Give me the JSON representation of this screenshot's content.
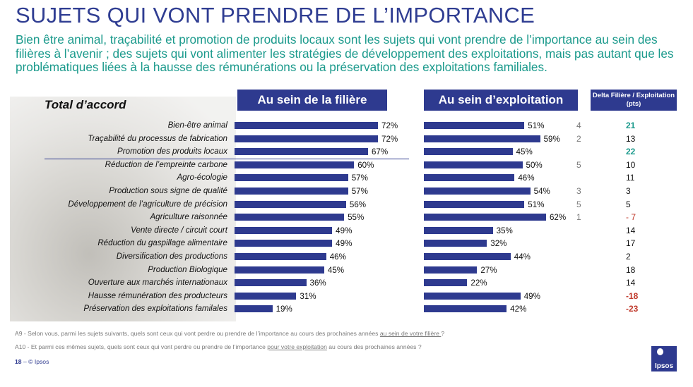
{
  "title": "SUJETS QUI VONT PRENDRE DE L’IMPORTANCE",
  "subtitle": "Bien être animal, traçabilité et promotion de produits locaux sont les sujets qui vont prendre de l’importance au sein des filières à l’avenir ; des sujets qui vont alimenter les stratégies de développement des exploitations, mais pas autant que les problématiques liées à la hausse des rémunérations ou la préservation des exploitations familiales.",
  "total_label": "Total d’accord",
  "headers": {
    "filiere": "Au sein de la filière",
    "exploitation": "Au sein d’exploitation",
    "delta": "Delta Filière / Exploitation (pts)"
  },
  "chart_data": {
    "type": "bar",
    "orientation": "horizontal",
    "categories": [
      "Bien-être animal",
      "Traçabilité du processus de fabrication",
      "Promotion des produits locaux",
      "Réduction de l’empreinte carbone",
      "Agro-écologie",
      "Production sous signe de qualité",
      "Développement de l’agriculture de précision",
      "Agriculture raisonnée",
      "Vente directe / circuit court",
      "Réduction du gaspillage alimentaire",
      "Diversification des productions",
      "Production Biologique",
      "Ouverture aux marchés internationaux",
      "Hausse rémunération des producteurs",
      "Préservation des exploitations familales"
    ],
    "series": [
      {
        "name": "Au sein de la filière",
        "values": [
          72,
          72,
          67,
          60,
          57,
          57,
          56,
          55,
          49,
          49,
          46,
          45,
          36,
          31,
          19
        ],
        "labels": [
          "72%",
          "72%",
          "67%",
          "60%",
          "57%",
          "57%",
          "56%",
          "55%",
          "49%",
          "49%",
          "46%",
          "45%",
          "36%",
          "31%",
          "19%"
        ]
      },
      {
        "name": "Au sein d’exploitation",
        "values": [
          51,
          59,
          45,
          50,
          46,
          54,
          51,
          62,
          35,
          32,
          44,
          27,
          22,
          49,
          42
        ],
        "labels": [
          "51%",
          "59%",
          "45%",
          "50%",
          "46%",
          "54%",
          "51%",
          "62%",
          "35%",
          "32%",
          "44%",
          "27%",
          "22%",
          "49%",
          "42%"
        ]
      }
    ],
    "rank_markers": [
      "4",
      "2",
      "",
      "5",
      "",
      "3",
      "5",
      "1",
      "",
      "",
      "",
      "",
      "",
      "",
      ""
    ],
    "delta": [
      "21",
      "13",
      "22",
      "10",
      "11",
      "3",
      "5",
      "- 7",
      "14",
      "17",
      "2",
      "18",
      "14",
      "-18",
      "-23"
    ],
    "delta_colors": [
      "#1b9a8c",
      "#111111",
      "#1b9a8c",
      "#111111",
      "#111111",
      "#111111",
      "#111111",
      "#c0392b",
      "#111111",
      "#111111",
      "#111111",
      "#111111",
      "#111111",
      "#c0392b",
      "#c0392b"
    ],
    "delta_bold": [
      true,
      false,
      true,
      false,
      false,
      false,
      false,
      false,
      false,
      false,
      false,
      false,
      false,
      true,
      true
    ],
    "bar_color": "#2e3a8f"
  },
  "questions": {
    "q1_prefix": "A9 - Selon vous, parmi les sujets suivants, quels sont ceux qui vont perdre ou prendre de l’importance au cours des prochaines années ",
    "q1_underline": "au sein de votre filière ",
    "q1_suffix": "?",
    "q2_prefix": "A10 - Et parmi ces mêmes sujets, quels sont ceux qui vont perdre ou prendre de l’importance ",
    "q2_underline": "pour votre exploitation",
    "q2_suffix": " au cours des prochaines années ?"
  },
  "footer": {
    "page": "18",
    "sep": " – ",
    "copyright": "© Ipsos"
  },
  "logo_text": "Ipsos"
}
